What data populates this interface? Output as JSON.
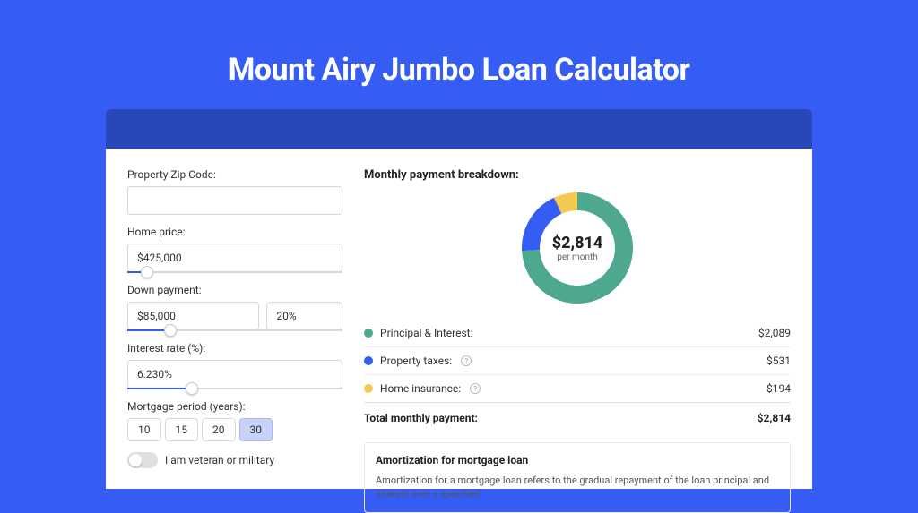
{
  "page": {
    "title": "Mount Airy Jumbo Loan Calculator",
    "background_color": "#355cf3",
    "strip_color": "#2847b8"
  },
  "form": {
    "zip_label": "Property Zip Code:",
    "zip_value": "",
    "home_price_label": "Home price:",
    "home_price_value": "$425,000",
    "home_price_slider_pct": 9,
    "down_payment_label": "Down payment:",
    "down_payment_value": "$85,000",
    "down_payment_pct_value": "20%",
    "down_payment_slider_pct": 20,
    "interest_label": "Interest rate (%):",
    "interest_value": "6.230%",
    "interest_slider_pct": 30,
    "period_label": "Mortgage period (years):",
    "periods": [
      "10",
      "15",
      "20",
      "30"
    ],
    "period_selected": "30",
    "veteran_label": "I am veteran or military"
  },
  "breakdown": {
    "title": "Monthly payment breakdown:",
    "donut": {
      "amount": "$2,814",
      "sub": "per month",
      "segments": [
        {
          "color": "#4da88f",
          "pct": 74.2
        },
        {
          "color": "#355cf3",
          "pct": 18.9
        },
        {
          "color": "#f4c94f",
          "pct": 6.9
        }
      ],
      "thickness": 20
    },
    "rows": [
      {
        "color": "#4da88f",
        "label": "Principal & Interest:",
        "value": "$2,089",
        "info": false
      },
      {
        "color": "#355cf3",
        "label": "Property taxes:",
        "value": "$531",
        "info": true
      },
      {
        "color": "#f4c94f",
        "label": "Home insurance:",
        "value": "$194",
        "info": true
      }
    ],
    "total_label": "Total monthly payment:",
    "total_value": "$2,814"
  },
  "amort": {
    "title": "Amortization for mortgage loan",
    "text": "Amortization for a mortgage loan refers to the gradual repayment of the loan principal and interest over a specified"
  }
}
